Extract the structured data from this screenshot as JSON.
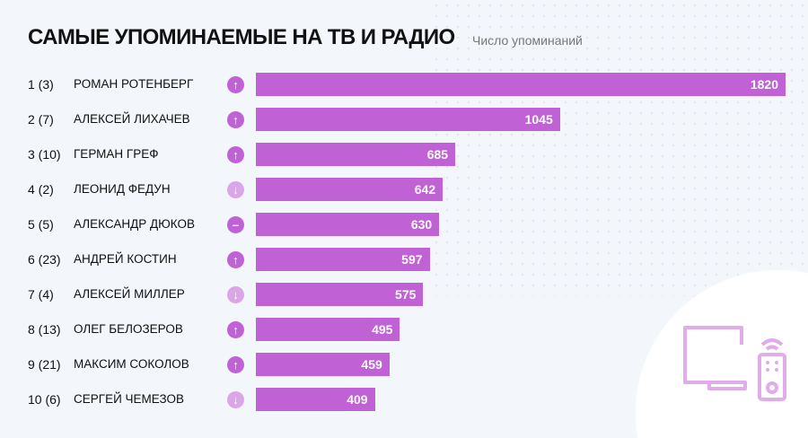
{
  "chart_data": {
    "type": "bar",
    "orientation": "horizontal",
    "title": "САМЫЕ УПОМИНАЕМЫЕ НА ТВ И РАДИО",
    "subtitle": "Число упоминаний",
    "ranks": [
      "1 (3)",
      "2 (7)",
      "3 (10)",
      "4 (2)",
      "5 (5)",
      "6 (23)",
      "7 (4)",
      "8 (13)",
      "9 (21)",
      "10 (6)"
    ],
    "categories": [
      "РОМАН РОТЕНБЕРГ",
      "АЛЕКСЕЙ ЛИХАЧЕВ",
      "ГЕРМАН ГРЕФ",
      "ЛЕОНИД ФЕДУН",
      "АЛЕКСАНДР ДЮКОВ",
      "АНДРЕЙ КОСТИН",
      "АЛЕКСЕЙ МИЛЛЕР",
      "ОЛЕГ БЕЛОЗЕРОВ",
      "МАКСИМ СОКОЛОВ",
      "СЕРГЕЙ ЧЕМЕЗОВ"
    ],
    "trends": [
      "up",
      "up",
      "up",
      "down",
      "same",
      "up",
      "down",
      "up",
      "up",
      "down"
    ],
    "values": [
      1820,
      1045,
      685,
      642,
      630,
      597,
      575,
      495,
      459,
      409
    ],
    "xlim": [
      0,
      1820
    ],
    "bar_color": "#c062d6",
    "trend_colors": {
      "up": "#c062d6",
      "same": "#c062d6",
      "down": "#dba6e7"
    }
  }
}
